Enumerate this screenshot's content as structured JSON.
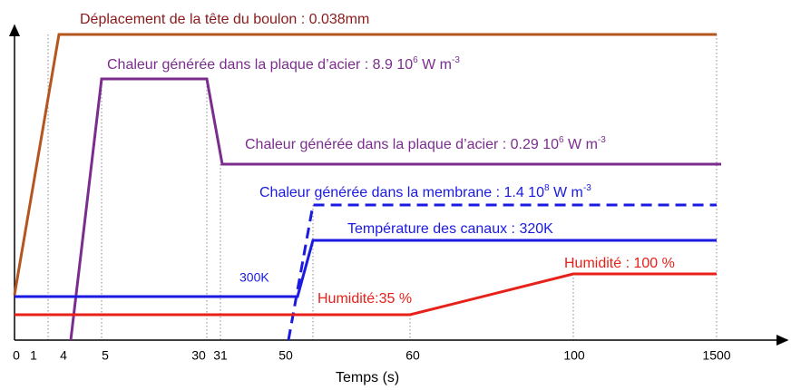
{
  "title": "Déplacement de la tête du boulon : 0.038mm",
  "x_axis_label": "Temps (s)",
  "x_ticks": [
    "0",
    "1",
    "4",
    "5",
    "30",
    "31",
    "50",
    "60",
    "100",
    "1500"
  ],
  "annotations": {
    "heat_plate_high": {
      "text": "Chaleur générée dans la plaque d’acier : 8.9 10",
      "exp": "6",
      "unit": " W m",
      "unit_exp": "-3"
    },
    "heat_plate_low": {
      "text": "Chaleur générée dans la plaque d’acier : 0.29 10",
      "exp": "6",
      "unit": " W m",
      "unit_exp": "-3"
    },
    "heat_membrane": {
      "text": "Chaleur générée dans la membrane : 1.4 10",
      "exp": "8",
      "unit": " W m",
      "unit_exp": "-3"
    },
    "channel_temp": "Température des canaux : 320K",
    "initial_temp": "300K",
    "humidity_low": "Humidité:35 %",
    "humidity_high": "Humidité : 100 %"
  }
}
